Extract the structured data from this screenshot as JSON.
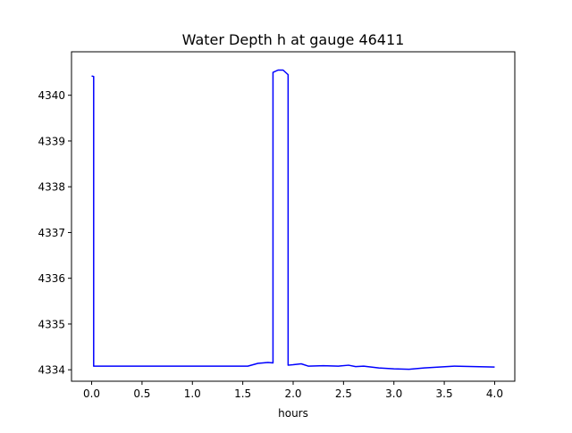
{
  "chart_data": {
    "type": "line",
    "title": "Water Depth h at gauge 46411",
    "xlabel": "hours",
    "ylabel": "",
    "xlim": [
      -0.2,
      4.2
    ],
    "ylim": [
      4333.75,
      4340.95
    ],
    "xticks": [
      0.0,
      0.5,
      1.0,
      1.5,
      2.0,
      2.5,
      3.0,
      3.5,
      4.0
    ],
    "xtick_labels": [
      "0.0",
      "0.5",
      "1.0",
      "1.5",
      "2.0",
      "2.5",
      "3.0",
      "3.5",
      "4.0"
    ],
    "yticks": [
      4334,
      4335,
      4336,
      4337,
      4338,
      4339,
      4340
    ],
    "ytick_labels": [
      "4334",
      "4335",
      "4336",
      "4337",
      "4338",
      "4339",
      "4340"
    ],
    "grid": false,
    "series": [
      {
        "color": "#0000ff",
        "x": [
          0.0,
          0.02,
          0.02,
          0.5,
          1.0,
          1.55,
          1.65,
          1.75,
          1.8,
          1.8,
          1.85,
          1.9,
          1.95,
          1.95,
          2.0,
          2.08,
          2.15,
          2.3,
          2.45,
          2.55,
          2.62,
          2.7,
          2.85,
          3.0,
          3.15,
          3.3,
          3.45,
          3.6,
          3.8,
          4.0
        ],
        "y": [
          4340.42,
          4340.41,
          4334.08,
          4334.08,
          4334.08,
          4334.08,
          4334.14,
          4334.16,
          4334.15,
          4340.5,
          4340.55,
          4340.55,
          4340.45,
          4334.1,
          4334.11,
          4334.13,
          4334.08,
          4334.09,
          4334.08,
          4334.1,
          4334.07,
          4334.08,
          4334.04,
          4334.02,
          4334.01,
          4334.04,
          4334.06,
          4334.08,
          4334.07,
          4334.06
        ]
      }
    ]
  }
}
